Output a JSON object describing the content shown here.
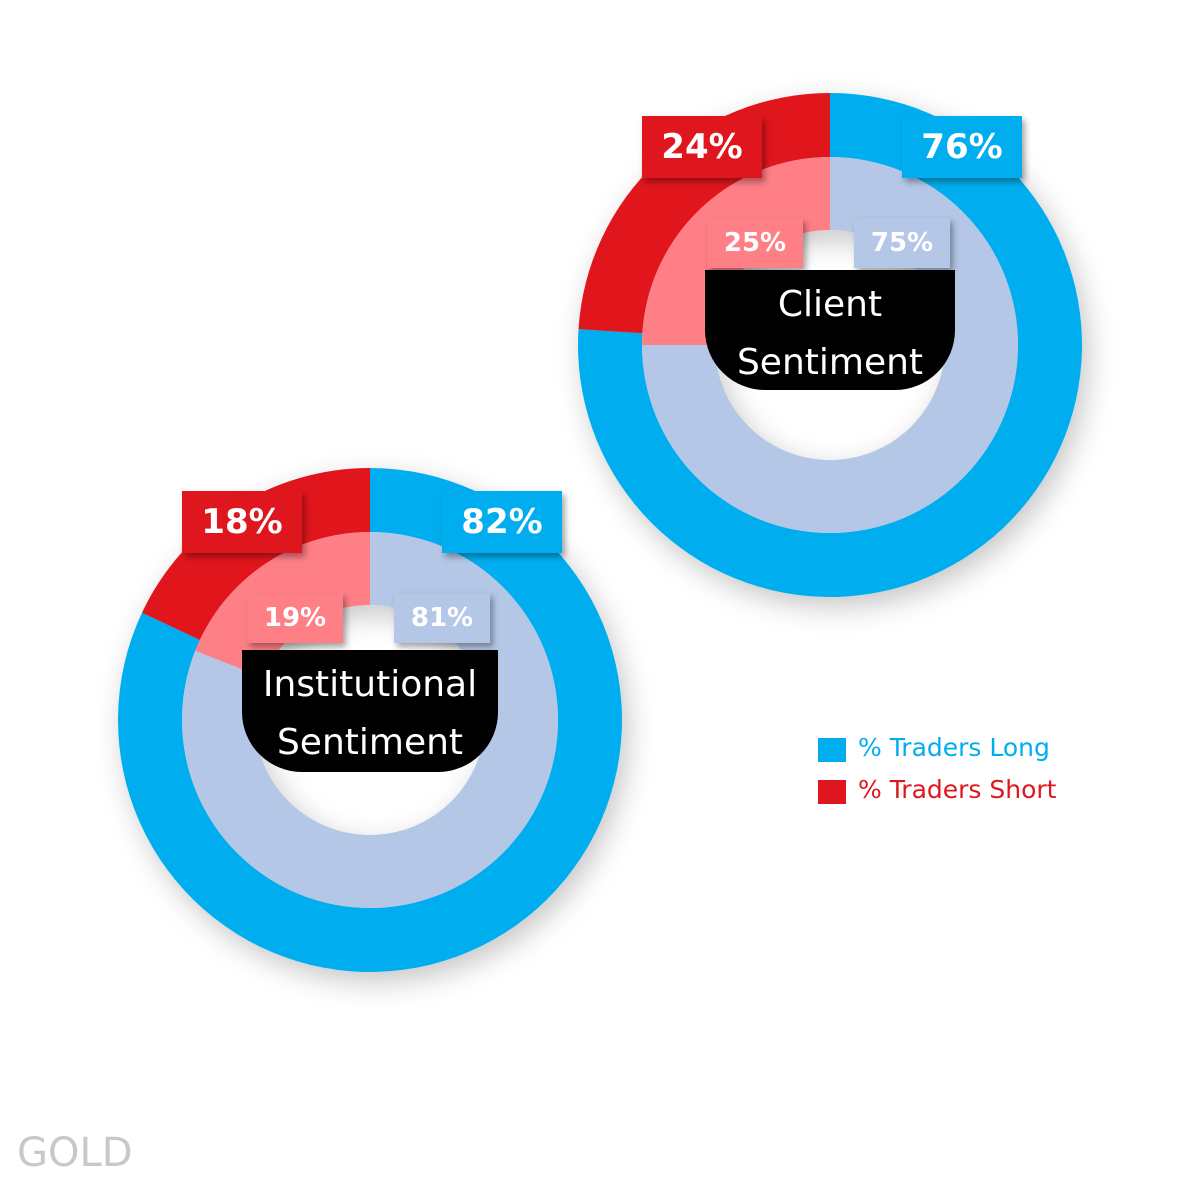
{
  "chart_data": [
    {
      "type": "donut",
      "title": "Client Sentiment",
      "series": [
        {
          "values": [
            76,
            24
          ],
          "value_labels": [
            "76%",
            "24%"
          ],
          "colors": [
            "#00aeef",
            "#e0161f"
          ]
        },
        {
          "values": [
            75,
            25
          ],
          "value_labels": [
            "75%",
            "25%"
          ],
          "colors": [
            "#b4c7e7",
            "#ff7f87"
          ]
        }
      ]
    },
    {
      "type": "donut",
      "title": "Institutional Sentiment",
      "series": [
        {
          "values": [
            82,
            18
          ],
          "value_labels": [
            "82%",
            "18%"
          ],
          "colors": [
            "#00aeef",
            "#e0161f"
          ]
        },
        {
          "values": [
            81,
            19
          ],
          "value_labels": [
            "81%",
            "19%"
          ],
          "colors": [
            "#b4c7e7",
            "#ff7f87"
          ]
        }
      ]
    }
  ],
  "legend": {
    "labels": [
      "% Traders Long",
      "% Traders Short"
    ],
    "colors": [
      "#00aeef",
      "#e0161f"
    ],
    "position": "right"
  },
  "watermark": "GOLD"
}
